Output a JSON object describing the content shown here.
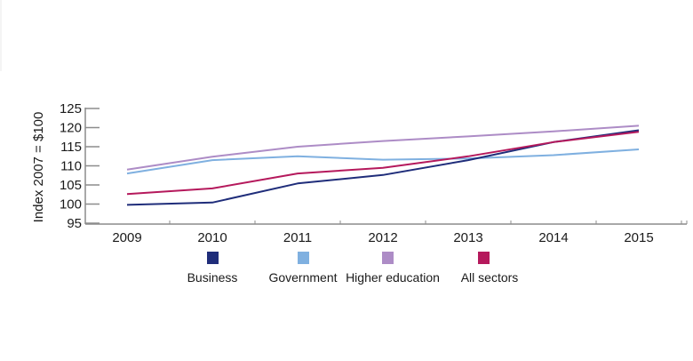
{
  "chart_data": {
    "type": "line",
    "title": "",
    "xlabel": "",
    "ylabel": "Index 2007 = $100",
    "categories": [
      "2009",
      "2010",
      "2011",
      "2012",
      "2013",
      "2014",
      "2015"
    ],
    "yticks": [
      "95",
      "100",
      "105",
      "110",
      "115",
      "120",
      "125"
    ],
    "ylim": [
      95,
      125
    ],
    "grid": false,
    "legend_position": "bottom",
    "series": [
      {
        "name": "Business",
        "color": "#1f2d7a",
        "values": [
          99.8,
          100.4,
          105.4,
          107.6,
          111.5,
          116.2,
          119.3
        ]
      },
      {
        "name": "Government",
        "color": "#7fb0e0",
        "values": [
          108.0,
          111.5,
          112.5,
          111.6,
          111.9,
          112.8,
          114.3
        ]
      },
      {
        "name": "Higher education",
        "color": "#ad8cc6",
        "values": [
          109.0,
          112.4,
          115.0,
          116.5,
          117.7,
          119.0,
          120.5
        ]
      },
      {
        "name": "All sectors",
        "color": "#b5195c",
        "values": [
          102.6,
          104.1,
          108.0,
          109.5,
          112.5,
          116.2,
          118.9
        ]
      }
    ]
  }
}
